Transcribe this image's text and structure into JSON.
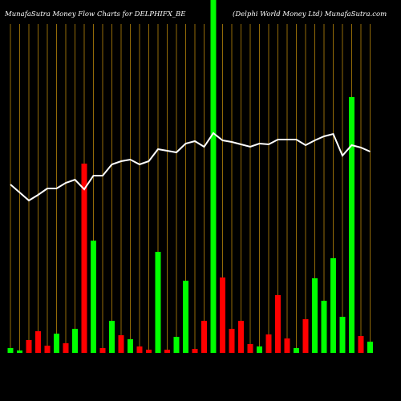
{
  "chart_data": {
    "type": "bar",
    "title": "MunafaSutra  Money Flow  Charts for DELPHIFX_BE",
    "subtitle": "(Delphi  World Money Ltd) MunafaSutra.com",
    "ylim": [
      0,
      440
    ],
    "background": "#000000",
    "grid_color": "#b8860b",
    "series": [
      {
        "type": "bar",
        "colors": [
          "#00ff00",
          "#00ff00",
          "#ff0000",
          "#ff0000",
          "#ff0000",
          "#00ff00",
          "#ff0000",
          "#00ff00",
          "#ff0000",
          "#00ff00",
          "#ff0000",
          "#00ff00",
          "#ff0000",
          "#00ff00",
          "#ff0000",
          "#ff0000",
          "#00ff00",
          "#ff0000",
          "#00ff00",
          "#00ff00",
          "#ff0000",
          "#ff0000",
          "#00ff00",
          "#ff0000",
          "#ff0000",
          "#ff0000",
          "#ff0000",
          "#00ff00",
          "#ff0000",
          "#ff0000",
          "#ff0000",
          "#00ff00",
          "#ff0000",
          "#00ff00",
          "#00ff00",
          "#00ff00",
          "#00ff00",
          "#00ff00",
          "#ff0000",
          "#00ff00"
        ],
        "values": [
          6,
          3,
          16,
          27,
          9,
          24,
          12,
          30,
          236,
          140,
          6,
          40,
          22,
          17,
          8,
          4,
          126,
          4,
          20,
          90,
          5,
          40,
          440,
          94,
          30,
          40,
          11,
          8,
          23,
          72,
          18,
          6,
          42,
          93,
          65,
          118,
          45,
          319,
          21,
          14
        ]
      },
      {
        "type": "line",
        "color": "#ffffff",
        "values": [
          210,
          200,
          190,
          197,
          205,
          205,
          212,
          216,
          204,
          221,
          221,
          235,
          239,
          241,
          235,
          239,
          254,
          252,
          250,
          261,
          264,
          257,
          274,
          265,
          263,
          260,
          257,
          261,
          260,
          266,
          266,
          266,
          259,
          265,
          270,
          273,
          246,
          259,
          256,
          251
        ]
      }
    ]
  }
}
